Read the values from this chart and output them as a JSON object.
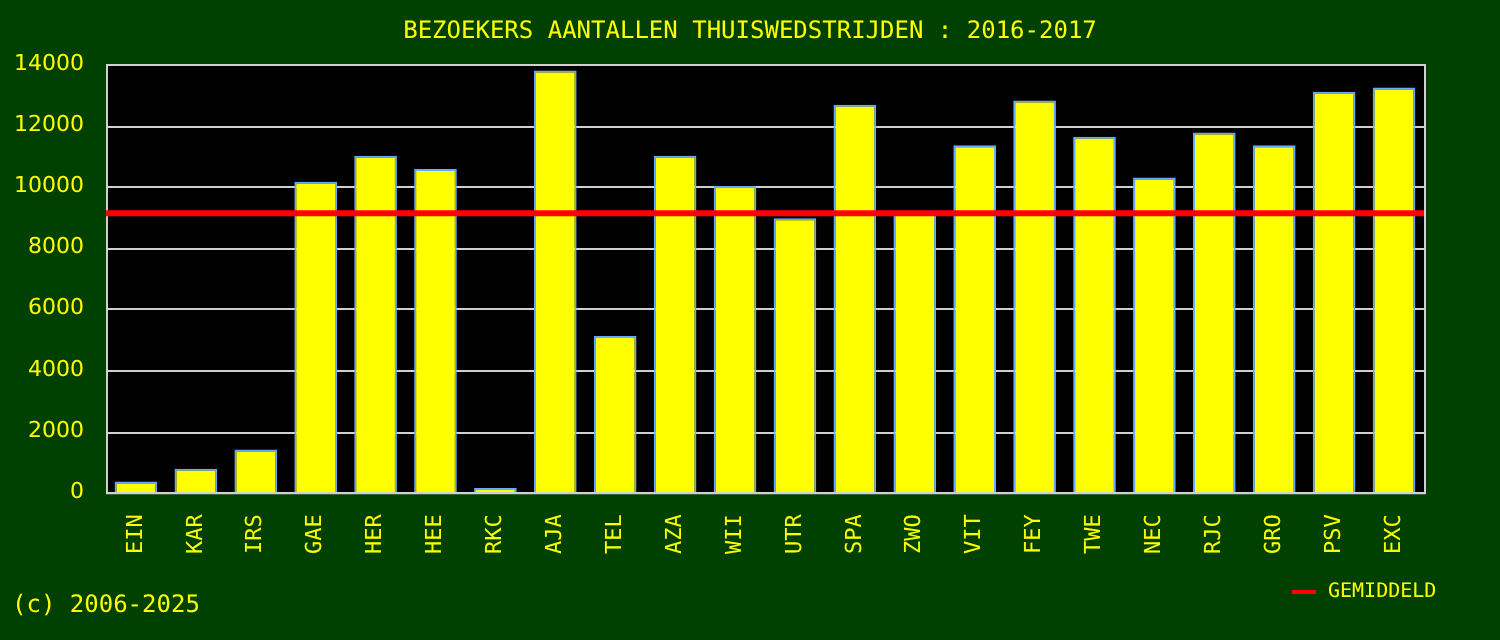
{
  "chart_data": {
    "type": "bar",
    "title": "BEZOEKERS AANTALLEN THUISWEDSTRIJDEN : 2016-2017",
    "categories": [
      "EIN",
      "KAR",
      "IRS",
      "GAE",
      "HER",
      "HEE",
      "RKC",
      "AJA",
      "TEL",
      "AZA",
      "WII",
      "UTR",
      "SPA",
      "ZWO",
      "VIT",
      "FEY",
      "TWE",
      "NEC",
      "RJC",
      "GRO",
      "PSV",
      "EXC"
    ],
    "values": [
      350,
      770,
      1400,
      10150,
      11000,
      10570,
      140,
      13790,
      5110,
      11000,
      10010,
      8960,
      12670,
      9100,
      11340,
      12810,
      11620,
      10290,
      11760,
      11340,
      13090,
      13230
    ],
    "color": "#ffff00",
    "ylim": [
      0,
      14000
    ],
    "yticks": [
      0,
      2000,
      4000,
      6000,
      8000,
      10000,
      12000,
      14000
    ],
    "grid": "y",
    "ref_lines": [
      {
        "axis": "y",
        "value": 9120,
        "label": "GEMIDDELD",
        "color": "#ff0000"
      }
    ],
    "legend": "bottom right",
    "annotations": [
      "(c) 2006-2025"
    ]
  }
}
